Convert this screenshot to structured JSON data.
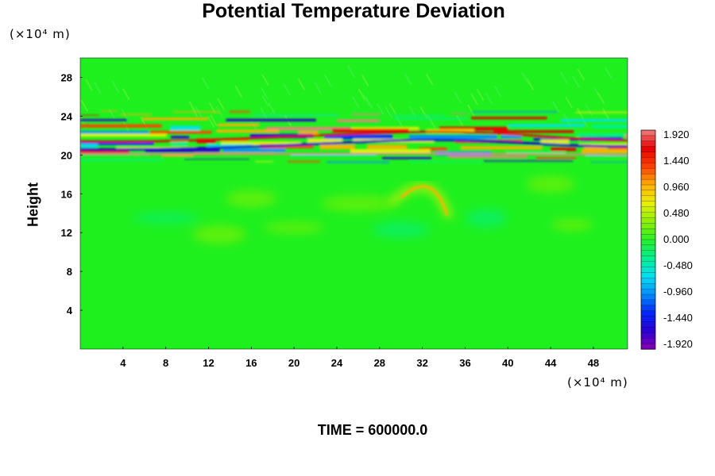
{
  "chart_data": {
    "type": "heatmap",
    "title": "Potential Temperature Deviation",
    "ylabel": "Height",
    "xlabel": "",
    "x_unit": "(×10⁴ m)",
    "y_unit": "(×10⁴ m)",
    "x_ticks": [
      4,
      8,
      12,
      16,
      20,
      24,
      28,
      32,
      36,
      40,
      44,
      48
    ],
    "y_ticks": [
      4,
      8,
      12,
      16,
      20,
      24,
      28
    ],
    "xlim": [
      0,
      51.2
    ],
    "ylim": [
      0,
      30
    ],
    "colorbar": {
      "range": [
        -1.92,
        1.92
      ],
      "labels": [
        "1.920",
        "1.440",
        "0.960",
        "0.480",
        "0.000",
        "-0.480",
        "-0.960",
        "-1.440",
        "-1.920"
      ]
    },
    "footer": "TIME = 600000.0",
    "features": [
      {
        "kind": "wave_band",
        "y_center": 21,
        "description": "strong alternating positive/negative anomalies"
      },
      {
        "kind": "plume",
        "x": 33,
        "y": 16,
        "sign": "positive"
      }
    ]
  },
  "colors": {
    "background_field": "#1ef01e",
    "colormap": [
      "#8a00b4",
      "#2a00d4",
      "#0028ff",
      "#0090ff",
      "#00e0f0",
      "#00f090",
      "#28f028",
      "#90f000",
      "#e8f000",
      "#ffb000",
      "#ff4000",
      "#e80000",
      "#f08080"
    ]
  }
}
